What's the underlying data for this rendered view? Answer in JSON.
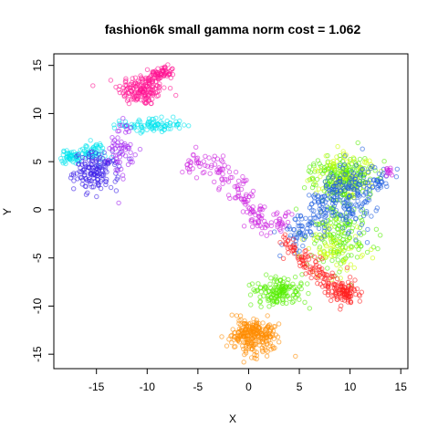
{
  "chart_data": {
    "type": "scatter",
    "title": "fashion6k small gamma norm cost = 1.062",
    "xlabel": "X",
    "ylabel": "Y",
    "xlim": [
      -19.2,
      15.7
    ],
    "ylim": [
      -16.5,
      16.2
    ],
    "x_ticks": [
      -15,
      -10,
      -5,
      0,
      5,
      10,
      15
    ],
    "y_ticks": [
      -15,
      -10,
      -5,
      0,
      5,
      10,
      15
    ],
    "x_tick_labels": [
      "-15",
      "-10",
      "-5",
      "0",
      "5",
      "10",
      "15"
    ],
    "y_tick_labels": [
      "-15",
      "-10",
      "-5",
      "0",
      "5",
      "10",
      "15"
    ],
    "grid": false,
    "legend": "none",
    "marker": "open circle, semi-transparent",
    "clusters": [
      {
        "color": "#ff1493",
        "shape": "blob",
        "center": [
          -10.5,
          12.5
        ],
        "spread": [
          2.0,
          1.4
        ],
        "points": 170
      },
      {
        "color": "#ff1493",
        "shape": "blob",
        "center": [
          -8.5,
          14.2
        ],
        "spread": [
          1.0,
          0.6
        ],
        "points": 60
      },
      {
        "color": "#00e5ee",
        "shape": "blob",
        "center": [
          -9.5,
          8.8
        ],
        "spread": [
          2.5,
          0.6
        ],
        "points": 90
      },
      {
        "color": "#00e5ee",
        "shape": "blob",
        "center": [
          -17.5,
          5.5
        ],
        "spread": [
          0.8,
          0.6
        ],
        "points": 50
      },
      {
        "color": "#00e5ee",
        "shape": "blob",
        "center": [
          -15.5,
          6.0
        ],
        "spread": [
          1.2,
          0.8
        ],
        "points": 50
      },
      {
        "color": "#3a1ee8",
        "shape": "blob",
        "center": [
          -15.0,
          4.0
        ],
        "spread": [
          1.8,
          1.6
        ],
        "points": 150
      },
      {
        "color": "#a020f0",
        "shape": "blob",
        "center": [
          -12.5,
          6.5
        ],
        "spread": [
          1.0,
          2.5
        ],
        "points": 60
      },
      {
        "color": "#cc1fe0",
        "shape": "path",
        "path": [
          [
            -6,
            5
          ],
          [
            -3,
            4.6
          ],
          [
            -1,
            2.0
          ],
          [
            0.3,
            -0.5
          ],
          [
            2,
            -2
          ],
          [
            4,
            -1
          ]
        ],
        "width": 0.55,
        "points": 170
      },
      {
        "color": "#ff8c00",
        "shape": "blob",
        "center": [
          0.5,
          -13.0
        ],
        "spread": [
          2.0,
          1.5
        ],
        "points": 260
      },
      {
        "color": "#55ee00",
        "shape": "blob",
        "center": [
          9.5,
          3.5
        ],
        "spread": [
          2.5,
          1.8
        ],
        "points": 200
      },
      {
        "color": "#55ee00",
        "shape": "blob",
        "center": [
          3.0,
          -8.5
        ],
        "spread": [
          2.0,
          1.3
        ],
        "points": 150
      },
      {
        "color": "#55ee00",
        "shape": "blob",
        "center": [
          9.0,
          -2.5
        ],
        "spread": [
          2.5,
          3.0
        ],
        "points": 150
      },
      {
        "color": "#ccff00",
        "shape": "blob",
        "center": [
          9.5,
          3.5
        ],
        "spread": [
          2.5,
          2.0
        ],
        "points": 90
      },
      {
        "color": "#ccff00",
        "shape": "blob",
        "center": [
          8.5,
          -4.0
        ],
        "spread": [
          2.5,
          2.5
        ],
        "points": 70
      },
      {
        "color": "#1e5ee0",
        "shape": "path",
        "path": [
          [
            4.0,
            -3.5
          ],
          [
            6.0,
            -1.0
          ],
          [
            8.0,
            1.5
          ],
          [
            11.0,
            3.5
          ],
          [
            13.5,
            3.2
          ]
        ],
        "width": 0.7,
        "points": 200
      },
      {
        "color": "#1e5ee0",
        "shape": "blob",
        "center": [
          10.0,
          0.5
        ],
        "spread": [
          2.5,
          3.5
        ],
        "points": 120
      },
      {
        "color": "#ff2020",
        "shape": "path",
        "path": [
          [
            3.5,
            -3.5
          ],
          [
            6.0,
            -5.5
          ],
          [
            8.0,
            -7.5
          ],
          [
            10.0,
            -9.5
          ]
        ],
        "width": 0.55,
        "points": 150
      },
      {
        "color": "#ff2020",
        "shape": "blob",
        "center": [
          9.5,
          -8.5
        ],
        "spread": [
          1.2,
          0.9
        ],
        "points": 60
      },
      {
        "color": "#cc1fe0",
        "shape": "blob",
        "center": [
          13.8,
          4.0
        ],
        "spread": [
          0.5,
          0.4
        ],
        "points": 12
      }
    ]
  }
}
